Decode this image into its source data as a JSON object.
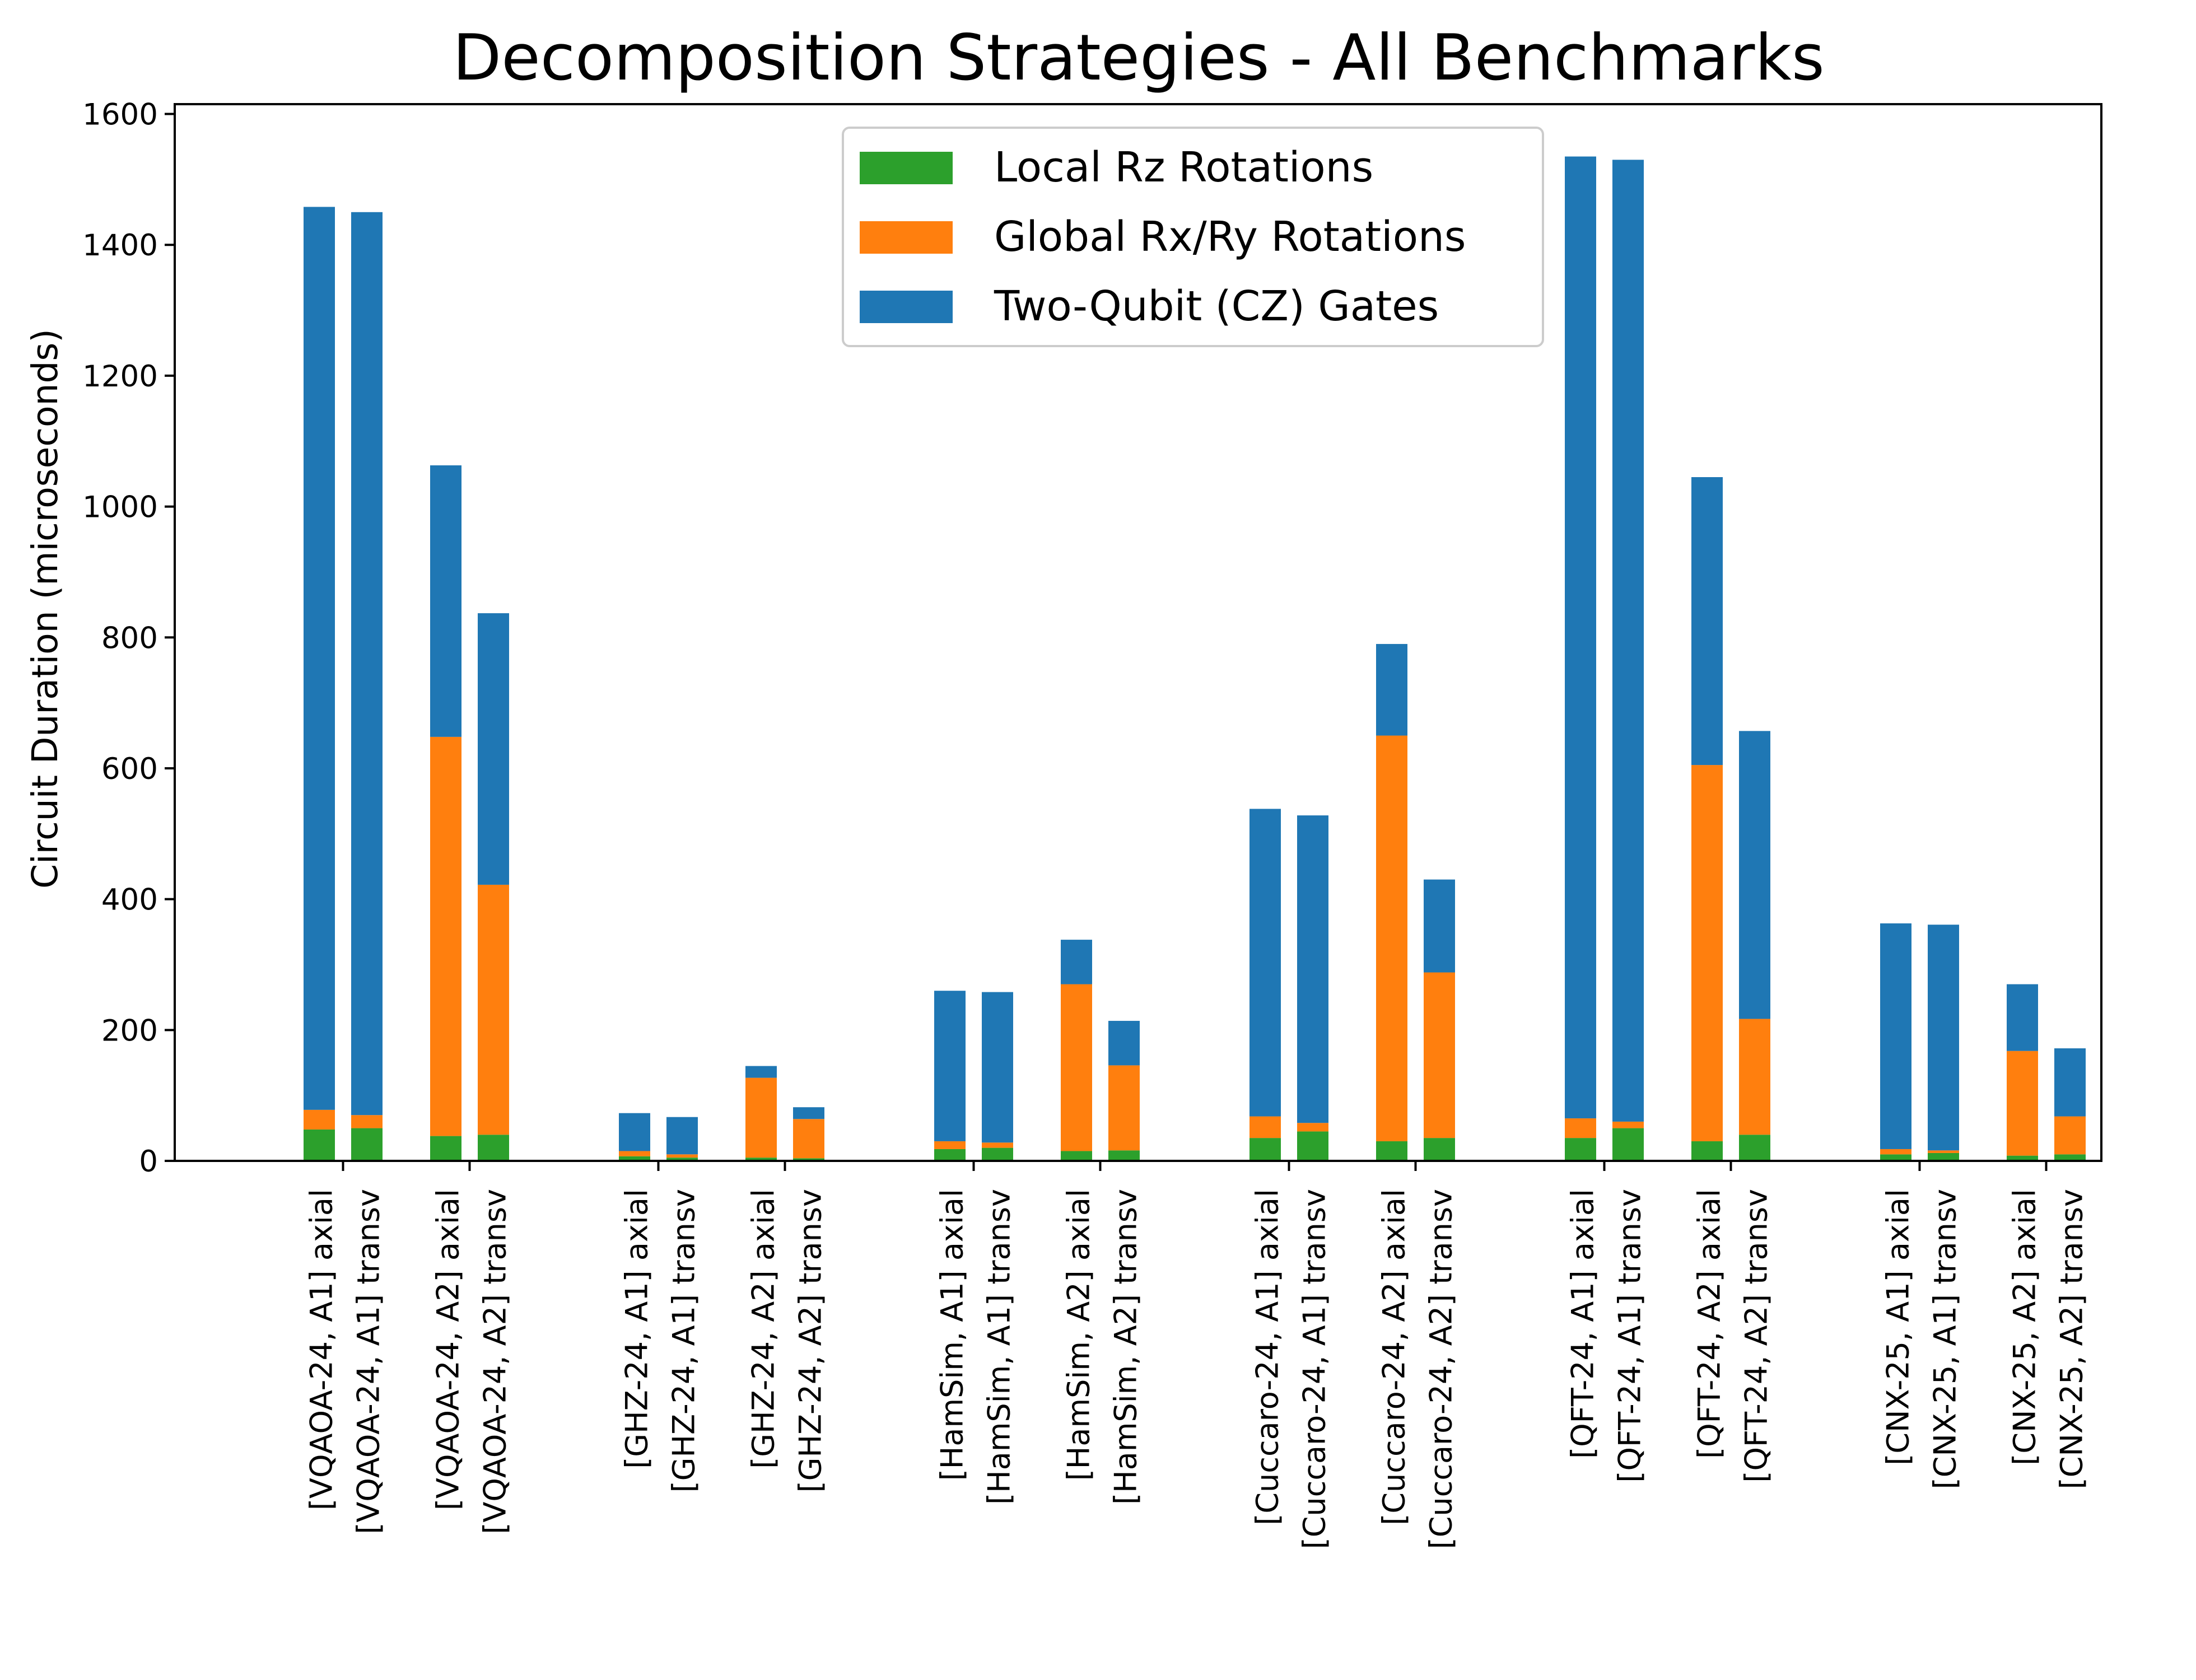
{
  "chart_data": {
    "type": "bar",
    "stacked": true,
    "title": "Decomposition Strategies - All Benchmarks",
    "xlabel": "",
    "ylabel": "Circuit Duration (microseconds)",
    "ylim": [
      0,
      1615
    ],
    "yticks": [
      0,
      200,
      400,
      600,
      800,
      1000,
      1200,
      1400,
      1600
    ],
    "grid": false,
    "legend_position": "top-center",
    "categories": [
      {
        "line1": "[VQAOA-24, A1] axial",
        "line2": "[VQAOA-24, A1] transv"
      },
      {
        "line1": "[VQAOA-24, A2] axial",
        "line2": "[VQAOA-24, A2] transv"
      },
      {
        "line1": "[GHZ-24, A1] axial",
        "line2": "[GHZ-24, A1] transv"
      },
      {
        "line1": "[GHZ-24, A2] axial",
        "line2": "[GHZ-24, A2] transv"
      },
      {
        "line1": "[HamSim, A1] axial",
        "line2": "[HamSim, A1] transv"
      },
      {
        "line1": "[HamSim, A2] axial",
        "line2": "[HamSim, A2] transv"
      },
      {
        "line1": "[Cuccaro-24, A1] axial",
        "line2": "[Cuccaro-24, A1] transv"
      },
      {
        "line1": "[Cuccaro-24, A2] axial",
        "line2": "[Cuccaro-24, A2] transv"
      },
      {
        "line1": "[QFT-24, A1] axial",
        "line2": "[QFT-24, A1] transv"
      },
      {
        "line1": "[QFT-24, A2] axial",
        "line2": "[QFT-24, A2] transv"
      },
      {
        "line1": "[CNX-25, A1] axial",
        "line2": "[CNX-25, A1] transv"
      },
      {
        "line1": "[CNX-25, A2] axial",
        "line2": "[CNX-25, A2] transv"
      }
    ],
    "bar_order": [
      "axial",
      "transv"
    ],
    "series": [
      {
        "name": "Local Rz Rotations",
        "color": "#2ca02c",
        "values": [
          [
            48,
            50
          ],
          [
            38,
            40
          ],
          [
            7,
            5
          ],
          [
            5,
            4
          ],
          [
            18,
            20
          ],
          [
            15,
            16
          ],
          [
            35,
            45
          ],
          [
            30,
            35
          ],
          [
            35,
            50
          ],
          [
            30,
            40
          ],
          [
            10,
            12
          ],
          [
            8,
            10
          ]
        ]
      },
      {
        "name": "Global Rx/Ry Rotations",
        "color": "#ff7f0e",
        "values": [
          [
            30,
            20
          ],
          [
            610,
            382
          ],
          [
            8,
            5
          ],
          [
            122,
            60
          ],
          [
            12,
            8
          ],
          [
            255,
            130
          ],
          [
            33,
            13
          ],
          [
            620,
            253
          ],
          [
            30,
            10
          ],
          [
            575,
            177
          ],
          [
            8,
            4
          ],
          [
            160,
            58
          ]
        ]
      },
      {
        "name": "Two-Qubit (CZ) Gates",
        "color": "#1f77b4",
        "values": [
          [
            1380,
            1380
          ],
          [
            415,
            415
          ],
          [
            58,
            57
          ],
          [
            18,
            18
          ],
          [
            230,
            230
          ],
          [
            68,
            68
          ],
          [
            470,
            470
          ],
          [
            140,
            142
          ],
          [
            1470,
            1470
          ],
          [
            440,
            440
          ],
          [
            345,
            345
          ],
          [
            102,
            104
          ]
        ]
      }
    ]
  }
}
